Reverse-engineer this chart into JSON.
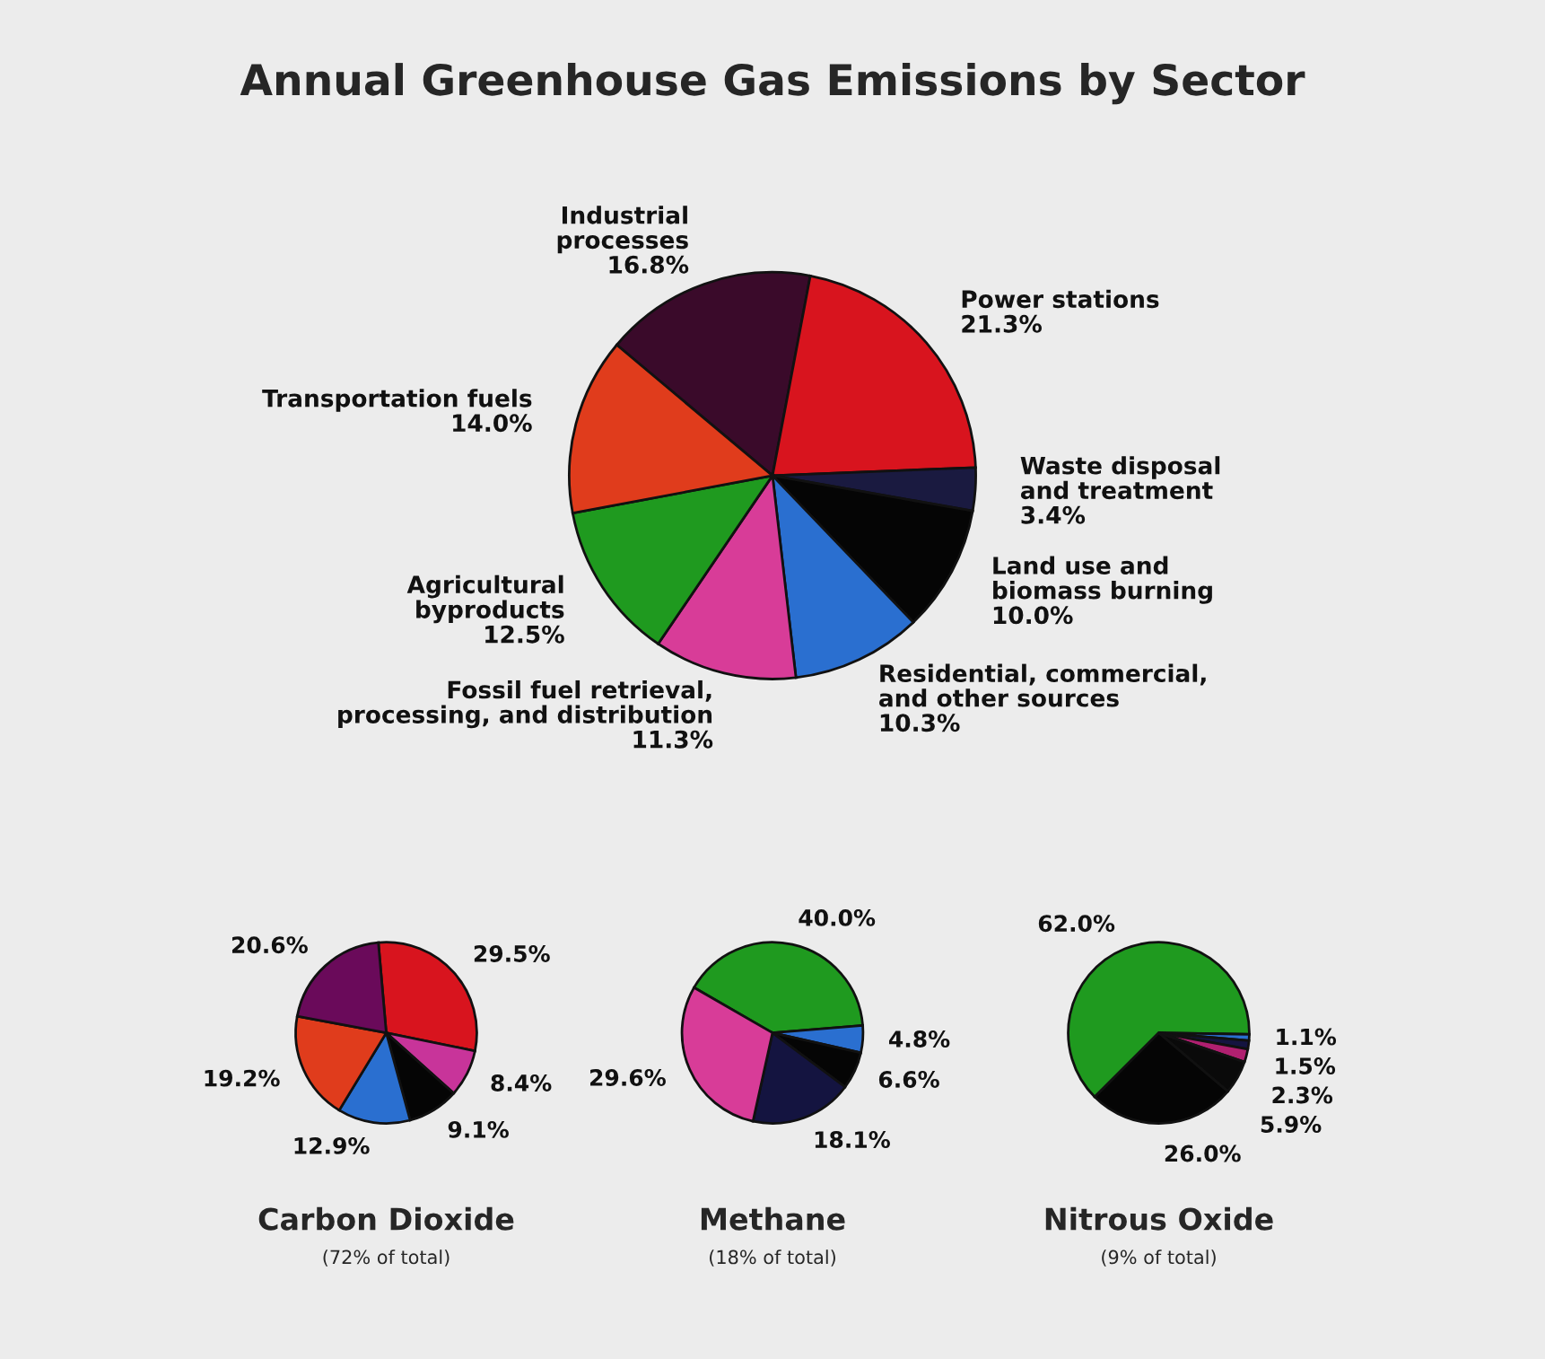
{
  "chart_data": [
    {
      "type": "pie",
      "title": "Annual Greenhouse Gas Emissions by Sector",
      "categories": [
        "Industrial\nprocesses",
        "Power stations",
        "Waste disposal\nand treatment",
        "Land use and\nbiomass burning",
        "Residential, commercial,\nand other sources",
        "Fossil fuel retrieval,\nprocessing, and distribution",
        "Agricultural\nbyproducts",
        "Transportation fuels"
      ],
      "values": [
        16.8,
        21.3,
        3.4,
        10.0,
        10.3,
        11.3,
        12.5,
        14.0
      ],
      "value_labels": [
        "16.8%",
        "21.3%",
        "3.4%",
        "10.0%",
        "10.3%",
        "11.3%",
        "12.5%",
        "14.0%"
      ],
      "colors": [
        "#3a0a2a",
        "#d8141e",
        "#1a1a40",
        "#050505",
        "#2a6fd0",
        "#d83c98",
        "#1f9a1f",
        "#e03c1c"
      ]
    },
    {
      "type": "pie",
      "title": "Carbon Dioxide",
      "subtitle": "(72% of total)",
      "categories": [
        null,
        null,
        null,
        null,
        null,
        null
      ],
      "values": [
        29.5,
        8.4,
        9.1,
        12.9,
        19.2,
        20.6
      ],
      "value_labels": [
        "29.5%",
        "8.4%",
        "9.1%",
        "12.9%",
        "19.2%",
        "20.6%"
      ],
      "colors": [
        "#d8141e",
        "#c8349a",
        "#050505",
        "#2a6fd0",
        "#e03c1c",
        "#6a0a5a"
      ]
    },
    {
      "type": "pie",
      "title": "Methane",
      "subtitle": "(18% of total)",
      "categories": [
        null,
        null,
        null,
        null,
        null
      ],
      "values": [
        40.0,
        4.8,
        6.6,
        18.1,
        29.6
      ],
      "value_labels": [
        "40.0%",
        "4.8%",
        "6.6%",
        "18.1%",
        "29.6%"
      ],
      "colors": [
        "#1f9a1f",
        "#2a6fd0",
        "#050505",
        "#141440",
        "#d83c98"
      ]
    },
    {
      "type": "pie",
      "title": "Nitrous Oxide",
      "subtitle": "(9% of total)",
      "categories": [
        null,
        null,
        null,
        null,
        null,
        null
      ],
      "values": [
        62.0,
        1.1,
        1.5,
        2.3,
        5.9,
        26.0
      ],
      "value_labels": [
        "62.0%",
        "1.1%",
        "1.5%",
        "2.3%",
        "5.9%",
        "26.0%"
      ],
      "colors": [
        "#1f9a1f",
        "#2a6fd0",
        "#141440",
        "#b02070",
        "#0a0a0a",
        "#050505"
      ]
    }
  ]
}
